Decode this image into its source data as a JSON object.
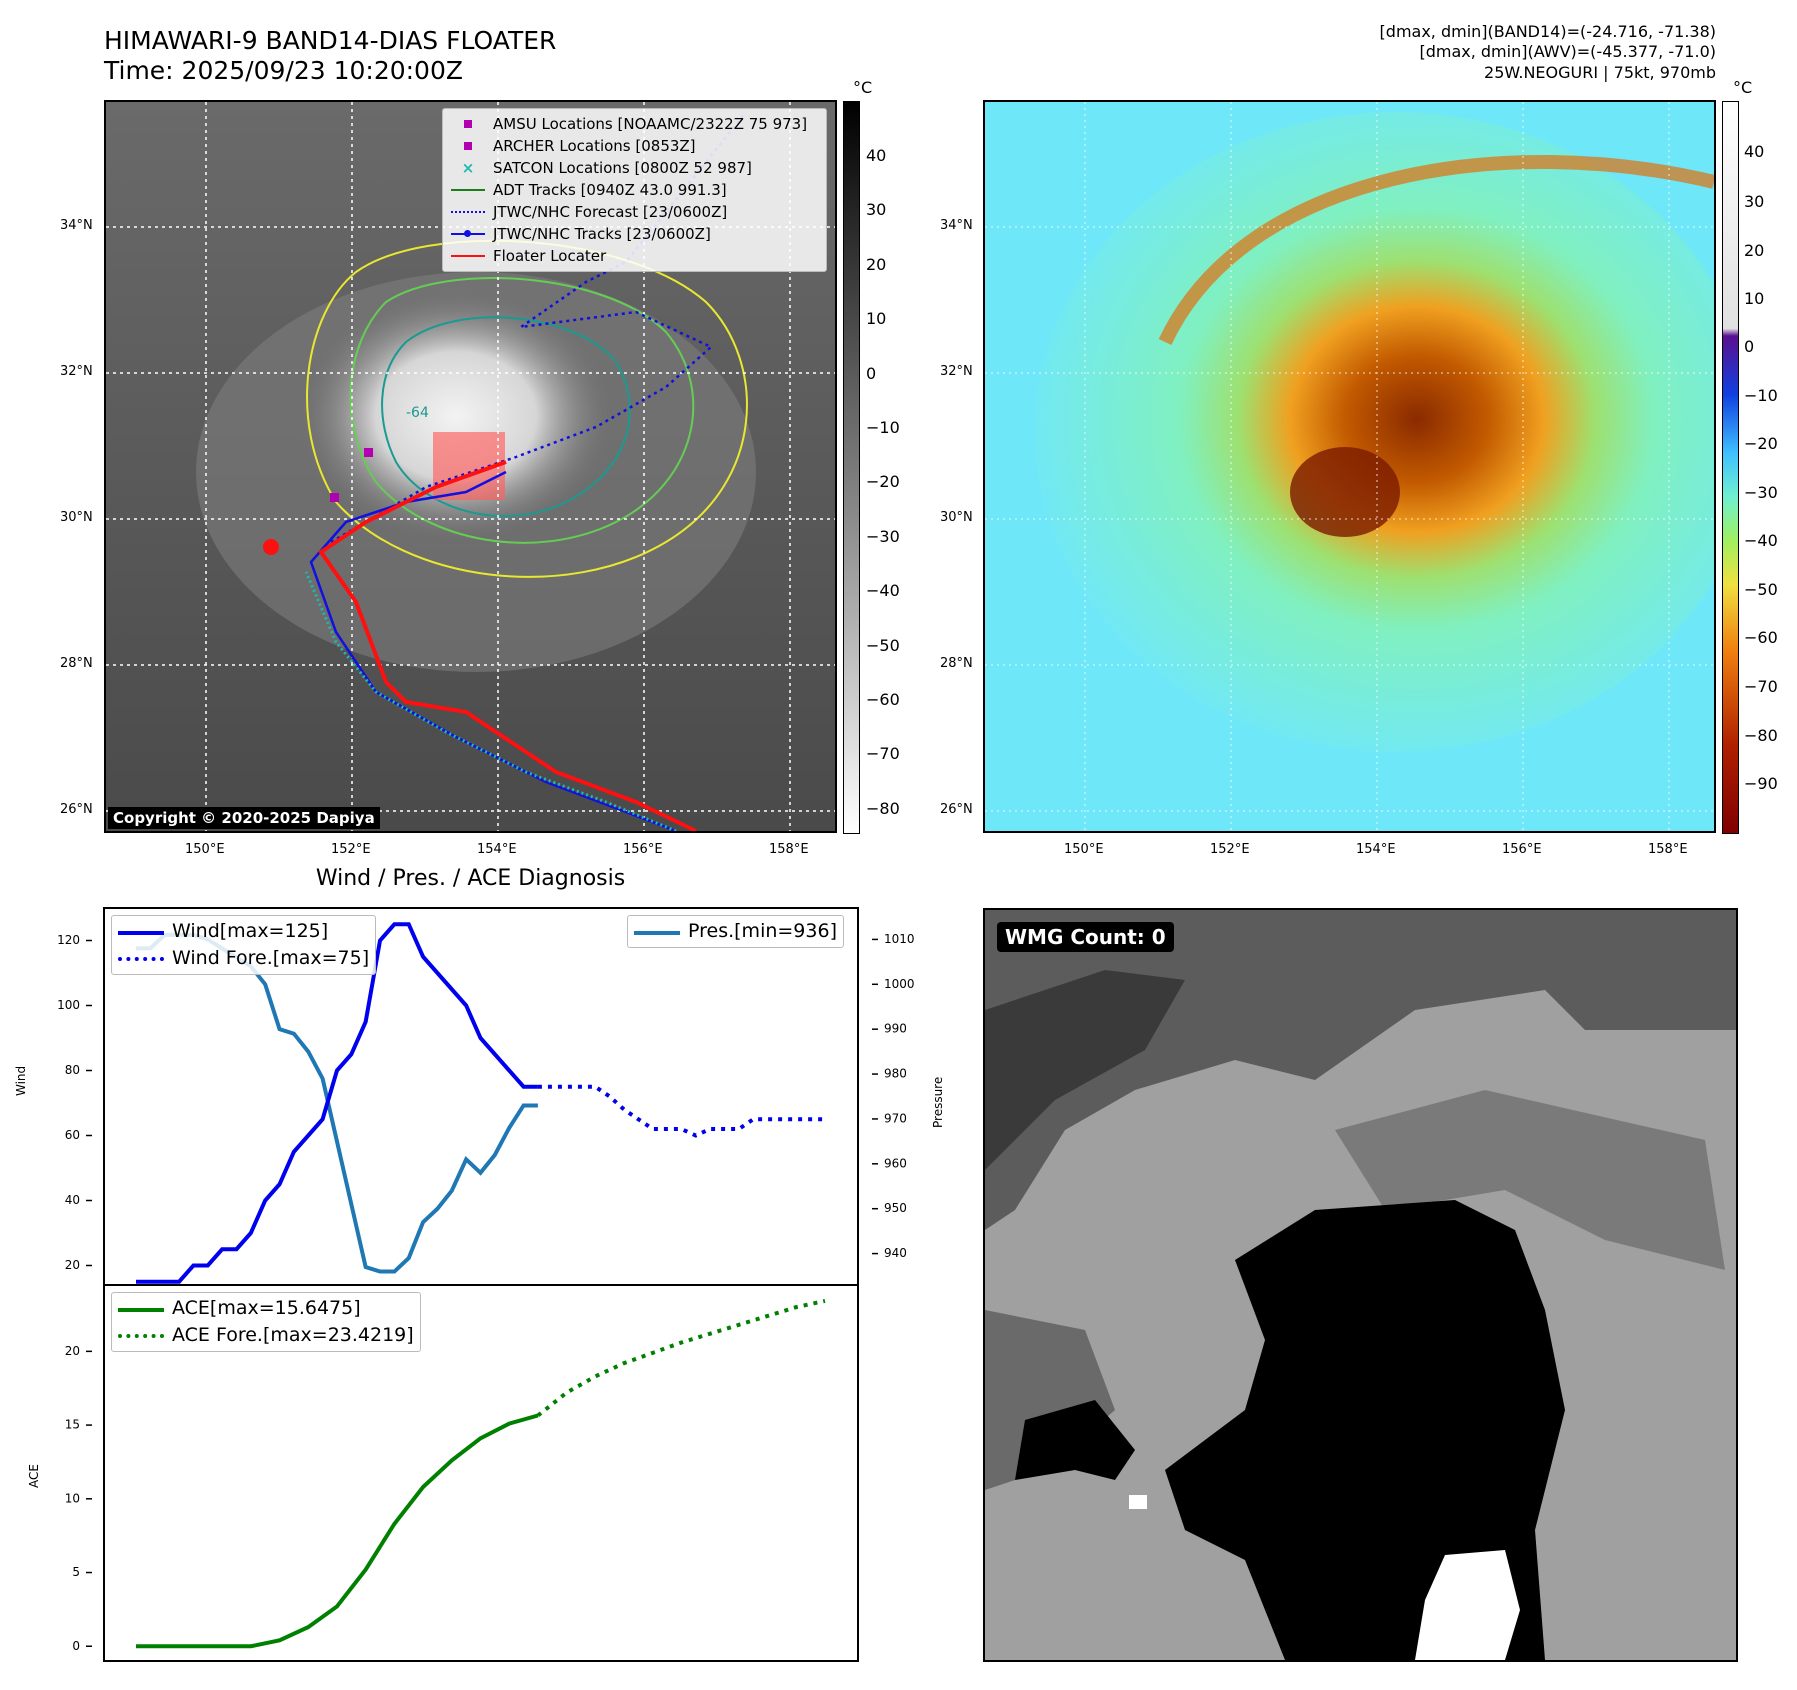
{
  "header": {
    "title_line1": "HIMAWARI-9 BAND14-DIAS FLOATER",
    "title_line2": "Time: 2025/09/23 10:20:00Z",
    "info_line1": "[dmax, dmin](BAND14)=(-24.716, -71.38)",
    "info_line2": "[dmax, dmin](AWV)=(-45.377, -71.0)",
    "info_line3": "25W.NEOGURI | 75kt, 970mb"
  },
  "map": {
    "lat_labels": [
      "34°N",
      "32°N",
      "30°N",
      "28°N",
      "26°N"
    ],
    "lon_labels": [
      "150°E",
      "152°E",
      "154°E",
      "156°E",
      "158°E"
    ],
    "copyright": "Copyright © 2020-2025 Dapiya",
    "contour_label": "-64",
    "legend": [
      {
        "label": "AMSU Locations [NOAAMC/2322Z 75 973]",
        "icon": "magenta-square",
        "color": "#b000b0"
      },
      {
        "label": "ARCHER Locations [0853Z]",
        "icon": "magenta-square",
        "color": "#b000b0"
      },
      {
        "label": "SATCON Locations [0800Z 52 987]",
        "icon": "teal-x",
        "color": "#20b8b0"
      },
      {
        "label": "ADT Tracks [0940Z 43.0 991.3]",
        "icon": "green-line",
        "color": "#1a7f1a"
      },
      {
        "label": "JTWC/NHC Forecast [23/0600Z]",
        "icon": "blue-dotted-line",
        "color": "#1010e0"
      },
      {
        "label": "JTWC/NHC Tracks [23/0600Z]",
        "icon": "blue-line-dot",
        "color": "#1010e0"
      },
      {
        "label": "Floater Locater",
        "icon": "red-line",
        "color": "#ff1010"
      }
    ],
    "colorbar_unit": "°C",
    "colorbar_ticks_gray": [
      "40",
      "30",
      "20",
      "10",
      "0",
      "−10",
      "−20",
      "−30",
      "−40",
      "−50",
      "−60",
      "−70",
      "−80"
    ],
    "colorbar_ticks_color": [
      "40",
      "30",
      "20",
      "10",
      "0",
      "−10",
      "−20",
      "−30",
      "−40",
      "−50",
      "−60",
      "−70",
      "−80",
      "−90"
    ]
  },
  "diag": {
    "title": "Wind / Pres. / ACE Diagnosis",
    "wmg": "WMG Count: 0",
    "wind_ylabel": "Wind",
    "pres_ylabel": "Pressure",
    "ace_ylabel": "ACE",
    "legend_wind": "Wind[max=125]",
    "legend_wind_fore": "Wind Fore.[max=75]",
    "legend_pres": "Pres.[min=936]",
    "legend_ace": "ACE[max=15.6475]",
    "legend_ace_fore": "ACE Fore.[max=23.4219]",
    "colors": {
      "wind": "#0000ee",
      "pres": "#1f77b4",
      "ace": "#008000"
    }
  },
  "chart_data": [
    {
      "type": "line",
      "title": "Wind / Pres. / ACE Diagnosis",
      "ylabel": "Wind",
      "ylim": [
        14,
        130
      ],
      "y_ticks": [
        20,
        40,
        60,
        80,
        100,
        120
      ],
      "series": [
        {
          "name": "Wind[max=125]",
          "x": [
            0,
            1,
            2,
            3,
            4,
            5,
            6,
            7,
            8,
            9,
            10,
            11,
            12,
            13,
            14,
            15,
            16,
            17,
            18,
            19,
            20,
            21,
            22,
            23,
            24,
            25,
            26,
            27,
            28
          ],
          "values": [
            15,
            15,
            15,
            15,
            20,
            20,
            25,
            25,
            30,
            40,
            45,
            55,
            60,
            65,
            80,
            85,
            95,
            120,
            125,
            125,
            115,
            110,
            105,
            100,
            90,
            85,
            80,
            75,
            75
          ]
        },
        {
          "name": "Wind Fore.[max=75]",
          "x": [
            28,
            29,
            30,
            31,
            32,
            33,
            34,
            35,
            36,
            37,
            38,
            39,
            40,
            41,
            42,
            43,
            44,
            45,
            46,
            47,
            48
          ],
          "values": [
            75,
            75,
            75,
            75,
            75,
            72,
            68,
            65,
            62,
            62,
            62,
            60,
            62,
            62,
            62,
            65,
            65,
            65,
            65,
            65,
            65
          ]
        }
      ]
    },
    {
      "type": "line",
      "ylabel": "Pressure",
      "ylim": [
        933,
        1017
      ],
      "y_ticks": [
        940,
        950,
        960,
        970,
        980,
        990,
        1000,
        1010
      ],
      "series": [
        {
          "name": "Pres.[min=936]",
          "x": [
            0,
            1,
            2,
            3,
            4,
            5,
            6,
            7,
            8,
            9,
            10,
            11,
            12,
            13,
            14,
            15,
            16,
            17,
            18,
            19,
            20,
            21,
            22,
            23,
            24,
            25,
            26,
            27,
            28
          ],
          "values": [
            1008,
            1008,
            1011,
            1011,
            1011,
            1010,
            1008,
            1006,
            1004,
            1000,
            990,
            989,
            985,
            979,
            965,
            951,
            937,
            936,
            936,
            939,
            947,
            950,
            954,
            961,
            958,
            962,
            968,
            973,
            973
          ]
        }
      ]
    },
    {
      "type": "line",
      "ylabel": "ACE",
      "ylim": [
        -1,
        24.5
      ],
      "y_ticks": [
        0,
        5,
        10,
        15,
        20
      ],
      "series": [
        {
          "name": "ACE[max=15.6475]",
          "x": [
            0,
            2,
            4,
            6,
            8,
            10,
            12,
            14,
            16,
            18,
            20,
            22,
            24,
            26,
            28
          ],
          "values": [
            0,
            0,
            0,
            0,
            0,
            0.4,
            1.3,
            2.7,
            5.2,
            8.3,
            10.8,
            12.6,
            14.1,
            15.1,
            15.65
          ]
        },
        {
          "name": "ACE Fore.[max=23.4219]",
          "x": [
            28,
            30,
            32,
            34,
            36,
            38,
            40,
            42,
            44,
            46,
            48
          ],
          "values": [
            15.65,
            17.2,
            18.3,
            19.2,
            19.9,
            20.6,
            21.2,
            21.8,
            22.4,
            23.0,
            23.42
          ]
        }
      ]
    }
  ]
}
